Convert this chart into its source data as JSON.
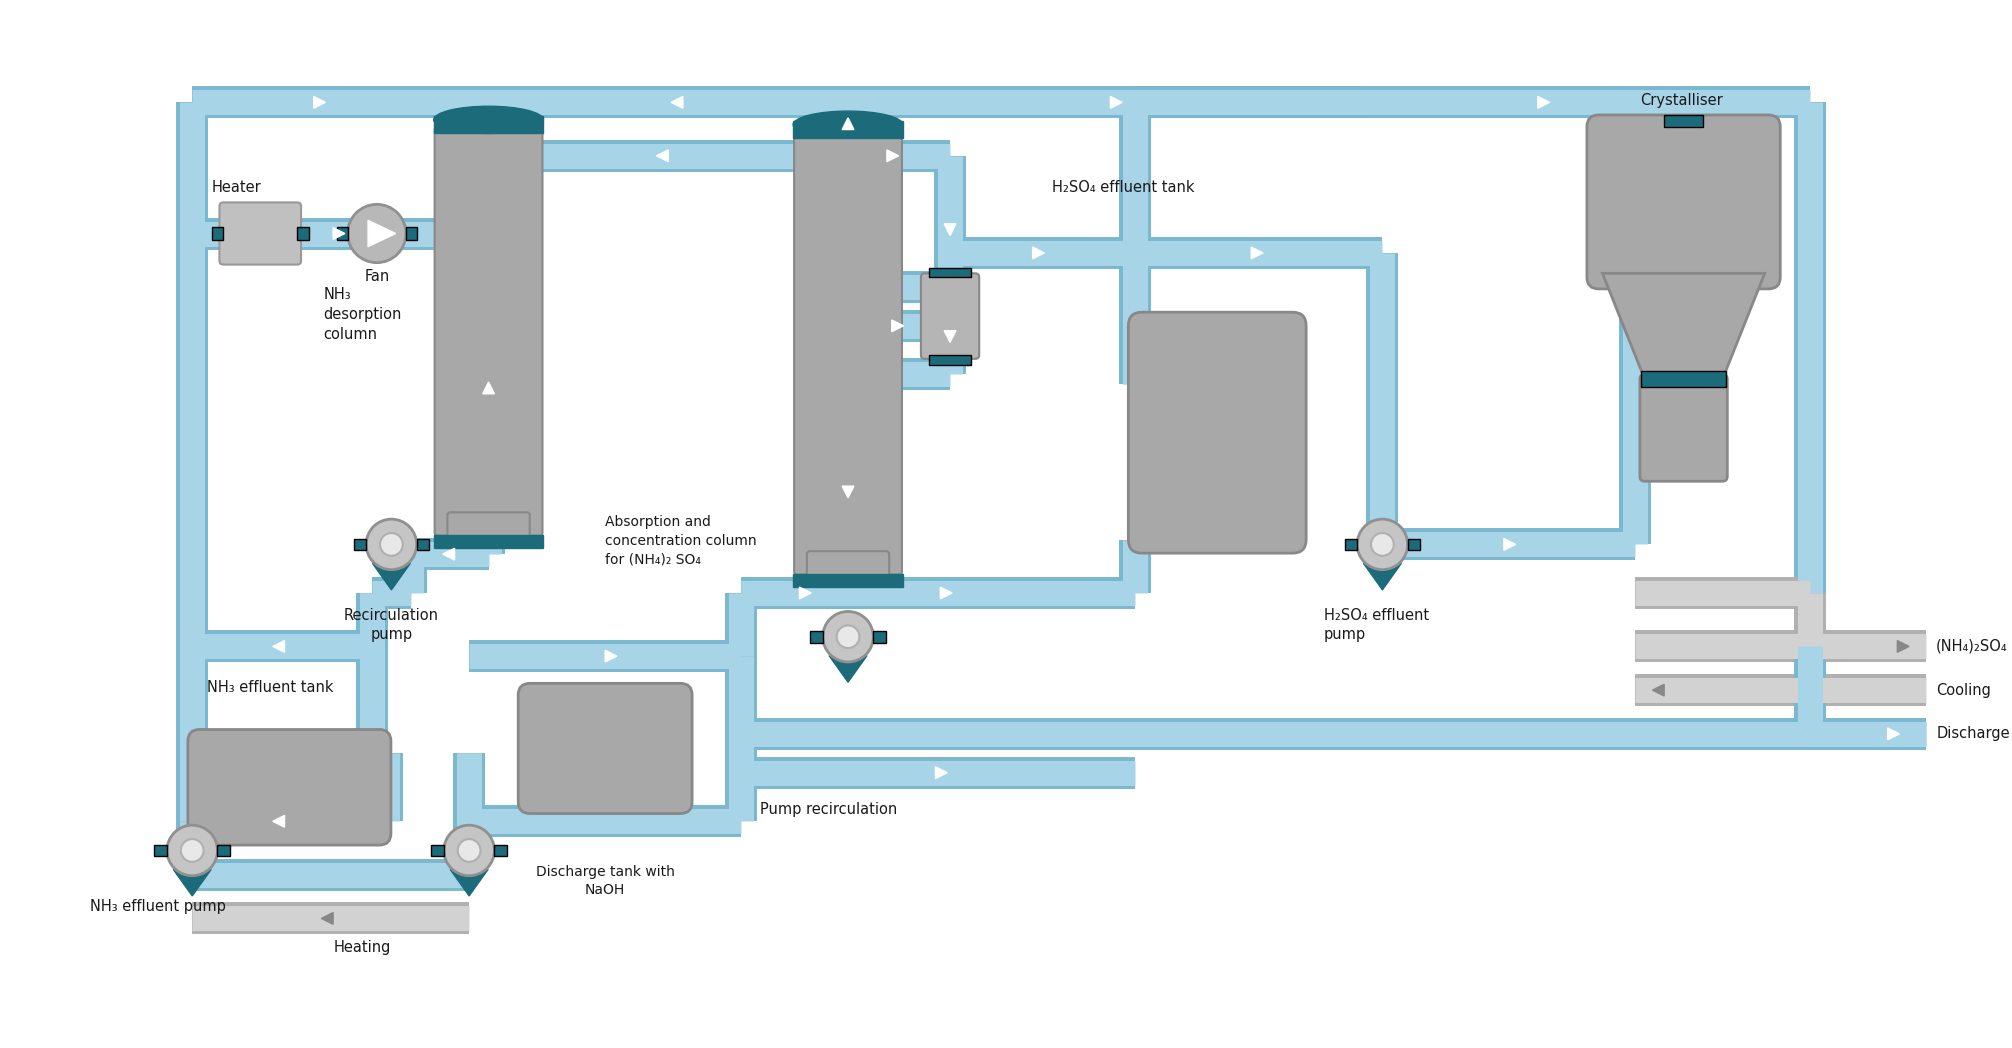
{
  "bg_color": "#ffffff",
  "pipe_fill": "#a8d4e8",
  "pipe_edge": "#7ab8d0",
  "pipe_lw": 18,
  "teal": "#1b6b7b",
  "gray_eq": "#a8a8a8",
  "gray_light": "#c0c0c0",
  "gray_out_fill": "#c8c8c8",
  "gray_out_edge": "#aaaaaa",
  "text_color": "#1a1a1a",
  "font_size": 10.5,
  "labels": {
    "heater": "Heater",
    "fan": "Fan",
    "nh3_des": "NH₃\ndesorption\ncolumn",
    "nh3_eff_tank": "NH₃ effluent tank",
    "nh3_eff_pump": "NH₃ effluent pump",
    "recirc_pump": "Recirculation\npump",
    "abs_col": "Absorption and\nconcentration column\nfor (NH₄)₂ SO₄",
    "h2so4_tank": "H₂SO₄ effluent tank",
    "h2so4_pump": "H₂SO₄ effluent\npump",
    "cryst": "Crystalliser",
    "disc_tank": "Discharge tank with\nNaOH",
    "pump_recirc": "Pump recirculation",
    "heating": "Heating",
    "nh4so4": "(NH₄)₂SO₄",
    "cooling": "Cooling",
    "discharge": "Discharge"
  }
}
